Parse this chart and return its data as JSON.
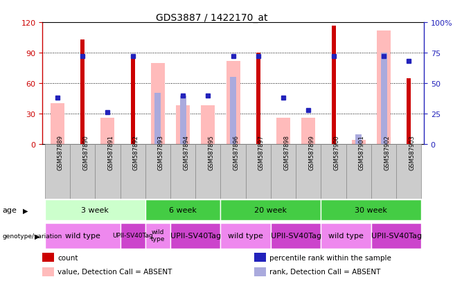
{
  "title": "GDS3887 / 1422170_at",
  "samples": [
    "GSM587889",
    "GSM587890",
    "GSM587891",
    "GSM587892",
    "GSM587893",
    "GSM587894",
    "GSM587895",
    "GSM587896",
    "GSM587897",
    "GSM587898",
    "GSM587899",
    "GSM587900",
    "GSM587901",
    "GSM587902",
    "GSM587903"
  ],
  "count": [
    0,
    103,
    0,
    88,
    0,
    0,
    0,
    0,
    90,
    0,
    0,
    117,
    0,
    0,
    65
  ],
  "percentile": [
    38,
    72,
    26,
    72,
    null,
    40,
    40,
    72,
    72,
    38,
    28,
    72,
    null,
    72,
    68
  ],
  "value_absent": [
    40,
    0,
    26,
    0,
    80,
    38,
    38,
    82,
    0,
    26,
    26,
    0,
    4,
    112,
    0
  ],
  "rank_absent": [
    0,
    0,
    0,
    0,
    42,
    40,
    0,
    55,
    0,
    0,
    0,
    0,
    8,
    75,
    0
  ],
  "ylim_left": [
    0,
    120
  ],
  "ylim_right": [
    0,
    100
  ],
  "yticks_left": [
    0,
    30,
    60,
    90,
    120
  ],
  "ytick_labels_left": [
    "0",
    "30",
    "60",
    "90",
    "120"
  ],
  "yticks_right": [
    0,
    25,
    50,
    75,
    100
  ],
  "ytick_labels_right": [
    "0",
    "25",
    "50",
    "75",
    "100%"
  ],
  "color_count": "#cc0000",
  "color_percentile": "#2222bb",
  "color_value_absent": "#ffbbbb",
  "color_rank_absent": "#aaaadd",
  "bar_width": 0.55,
  "bg_color": "#ffffff",
  "age_groups": [
    {
      "label": "3 week",
      "start": 0,
      "end": 3,
      "color": "#ccffcc"
    },
    {
      "label": "6 week",
      "start": 4,
      "end": 6,
      "color": "#44cc44"
    },
    {
      "label": "20 week",
      "start": 7,
      "end": 10,
      "color": "#44cc44"
    },
    {
      "label": "30 week",
      "start": 11,
      "end": 14,
      "color": "#44cc44"
    }
  ],
  "geno_groups": [
    {
      "label": "wild type",
      "start": 0,
      "end": 2,
      "color": "#ee88ee"
    },
    {
      "label": "UPII-SV40Tag",
      "start": 3,
      "end": 3,
      "color": "#cc44cc"
    },
    {
      "label": "wild\ntype",
      "start": 4,
      "end": 4,
      "color": "#ee88ee"
    },
    {
      "label": "UPII-SV40Tag",
      "start": 5,
      "end": 6,
      "color": "#cc44cc"
    },
    {
      "label": "wild type",
      "start": 7,
      "end": 8,
      "color": "#ee88ee"
    },
    {
      "label": "UPII-SV40Tag",
      "start": 9,
      "end": 10,
      "color": "#cc44cc"
    },
    {
      "label": "wild type",
      "start": 11,
      "end": 12,
      "color": "#ee88ee"
    },
    {
      "label": "UPII-SV40Tag",
      "start": 13,
      "end": 14,
      "color": "#cc44cc"
    }
  ],
  "legend_items": [
    {
      "label": "count",
      "color": "#cc0000"
    },
    {
      "label": "percentile rank within the sample",
      "color": "#2222bb"
    },
    {
      "label": "value, Detection Call = ABSENT",
      "color": "#ffbbbb"
    },
    {
      "label": "rank, Detection Call = ABSENT",
      "color": "#aaaadd"
    }
  ]
}
